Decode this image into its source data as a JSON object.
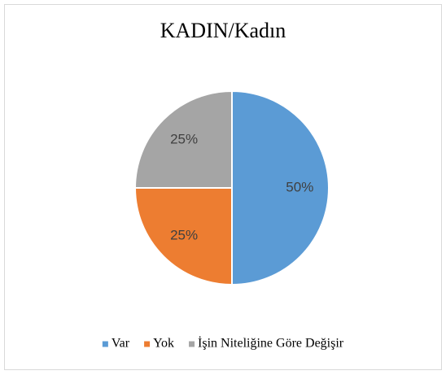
{
  "chart_data": {
    "type": "pie",
    "title": "KADIN/Kadın",
    "categories": [
      "Var",
      "Yok",
      "İşin Niteliğine Göre Değişir"
    ],
    "values": [
      50,
      25,
      25
    ],
    "value_labels": [
      "50%",
      "25%",
      "25%"
    ],
    "colors": [
      "#5b9bd5",
      "#ed7d31",
      "#a5a5a5"
    ],
    "legend": "bottom"
  }
}
